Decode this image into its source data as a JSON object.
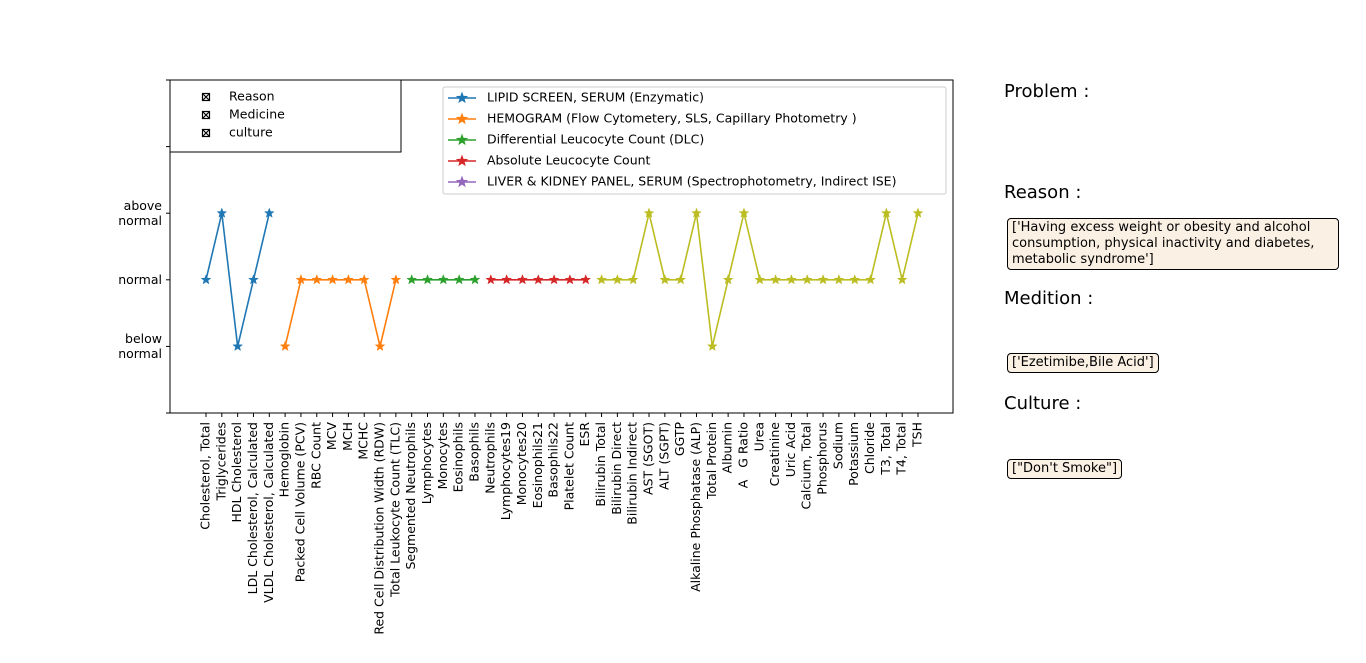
{
  "chart_data": {
    "type": "line",
    "categories": [
      "Cholesterol, Total",
      "Triglycerides",
      "HDL Cholesterol",
      "LDL Cholesterol, Calculated",
      "VLDL Cholesterol, Calculated",
      "Hemoglobin",
      "Packed Cell Volume (PCV)",
      "RBC Count",
      "MCV",
      "MCH",
      "MCHC",
      "Red Cell Distribution Width (RDW)",
      "Total Leukocyte Count (TLC)",
      "Segmented Neutrophils",
      "Lymphocytes",
      "Monocytes",
      "Eosinophils",
      "Basophils",
      "Neutrophils",
      "Lymphocytes19",
      "Monocytes20",
      "Eosinophils21",
      "Basophils22",
      "Platelet Count",
      "ESR",
      "Bilirubin Total",
      "Bilirubin Direct",
      "Bilirubin Indirect",
      "AST (SGOT)",
      "ALT (SGPT)",
      "GGTP",
      "Alkaline Phosphatase (ALP)",
      "Total Protein",
      "Albumin",
      "A   G Ratio",
      "Urea",
      "Creatinine",
      "Uric Acid",
      "Calcium, Total",
      "Phosphorus",
      "Sodium",
      "Potassium",
      "Chloride",
      "T3, Total",
      "T4, Total",
      "TSH"
    ],
    "series": [
      {
        "name": "LIPID SCREEN, SERUM (Enzymatic)",
        "color": "#1f77b4",
        "values": [
          1,
          2,
          0,
          1,
          2,
          null,
          null,
          null,
          null,
          null,
          null,
          null,
          null,
          null,
          null,
          null,
          null,
          null,
          null,
          null,
          null,
          null,
          null,
          null,
          null,
          null,
          null,
          null,
          null,
          null,
          null,
          null,
          null,
          null,
          null,
          null,
          null,
          null,
          null,
          null,
          null,
          null,
          null,
          null,
          null,
          null
        ]
      },
      {
        "name": "HEMOGRAM (Flow Cytometery, SLS, Capillary Photometry )",
        "color": "#ff7f0e",
        "values": [
          null,
          null,
          null,
          null,
          null,
          0,
          1,
          1,
          1,
          1,
          1,
          0,
          1,
          null,
          null,
          null,
          null,
          null,
          null,
          null,
          null,
          null,
          null,
          null,
          null,
          null,
          null,
          null,
          null,
          null,
          null,
          null,
          null,
          null,
          null,
          null,
          null,
          null,
          null,
          null,
          null,
          null,
          null,
          null,
          null,
          null
        ]
      },
      {
        "name": "Differential Leucocyte Count (DLC)",
        "color": "#2ca02c",
        "values": [
          null,
          null,
          null,
          null,
          null,
          null,
          null,
          null,
          null,
          null,
          null,
          null,
          null,
          1,
          1,
          1,
          1,
          1,
          null,
          null,
          null,
          null,
          null,
          null,
          null,
          null,
          null,
          null,
          null,
          null,
          null,
          null,
          null,
          null,
          null,
          null,
          null,
          null,
          null,
          null,
          null,
          null,
          null,
          null,
          null,
          null
        ]
      },
      {
        "name": "Absolute Leucocyte Count",
        "color": "#d62728",
        "values": [
          null,
          null,
          null,
          null,
          null,
          null,
          null,
          null,
          null,
          null,
          null,
          null,
          null,
          null,
          null,
          null,
          null,
          null,
          1,
          1,
          1,
          1,
          1,
          1,
          1,
          null,
          null,
          null,
          null,
          null,
          null,
          null,
          null,
          null,
          null,
          null,
          null,
          null,
          null,
          null,
          null,
          null,
          null,
          null,
          null,
          null
        ]
      },
      {
        "name": "LIVER & KIDNEY PANEL, SERUM (Spectrophotometry, Indirect ISE)",
        "color": "#9467bd",
        "line_color": "#bcbd22",
        "values": [
          null,
          null,
          null,
          null,
          null,
          null,
          null,
          null,
          null,
          null,
          null,
          null,
          null,
          null,
          null,
          null,
          null,
          null,
          null,
          null,
          null,
          null,
          null,
          null,
          null,
          1,
          1,
          1,
          2,
          1,
          1,
          2,
          0,
          1,
          2,
          1,
          1,
          1,
          1,
          1,
          1,
          1,
          1,
          2,
          1,
          2
        ]
      }
    ],
    "ylim": [
      -1,
      4
    ],
    "yticks": [
      {
        "value": -1,
        "label": null
      },
      {
        "value": 0,
        "label": "below\nnormal"
      },
      {
        "value": 1,
        "label": "normal"
      },
      {
        "value": 2,
        "label": "above\nnormal"
      },
      {
        "value": 3,
        "label": null
      },
      {
        "value": 4,
        "label": null
      }
    ],
    "legend": "upper right",
    "marker_legend": [
      "Reason",
      "Medicine",
      "culture"
    ]
  },
  "panel": {
    "problem_label": "Problem :",
    "reason_label": "Reason :",
    "reason_text": "['Having excess weight or obesity and alcohol consumption, physical inactivity and diabetes, metabolic syndrome']",
    "medicine_label": "Medition :",
    "medicine_text": "['Ezetimibe,Bile Acid']",
    "culture_label": "Culture :",
    "culture_text": "[\"Don't Smoke\"]"
  }
}
